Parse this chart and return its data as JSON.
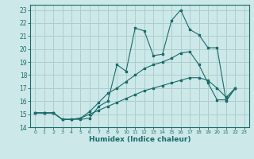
{
  "xlabel": "Humidex (Indice chaleur)",
  "bg_color": "#cce8e8",
  "grid_color": "#aecece",
  "line_color": "#1a6b6b",
  "xlim": [
    -0.5,
    23.5
  ],
  "ylim": [
    14,
    23.4
  ],
  "yticks": [
    14,
    15,
    16,
    17,
    18,
    19,
    20,
    21,
    22,
    23
  ],
  "xticks": [
    0,
    1,
    2,
    3,
    4,
    5,
    6,
    7,
    8,
    9,
    10,
    11,
    12,
    13,
    14,
    15,
    16,
    17,
    18,
    19,
    20,
    21,
    22,
    23
  ],
  "series": [
    {
      "x": [
        0,
        1,
        2,
        3,
        4,
        5,
        6,
        7,
        8,
        9,
        10,
        11,
        12,
        13,
        14,
        15,
        16,
        17,
        18,
        19,
        20,
        21,
        22
      ],
      "y": [
        15.1,
        15.1,
        15.1,
        14.6,
        14.6,
        14.6,
        14.7,
        15.6,
        16.0,
        18.8,
        18.3,
        21.6,
        21.4,
        19.5,
        19.6,
        22.2,
        23.0,
        21.5,
        21.1,
        20.1,
        20.1,
        16.0,
        17.0
      ]
    },
    {
      "x": [
        0,
        1,
        2,
        3,
        4,
        5,
        6,
        7,
        8,
        9,
        10,
        11,
        12,
        13,
        14,
        15,
        16,
        17,
        18,
        19,
        20,
        21,
        22
      ],
      "y": [
        15.1,
        15.1,
        15.1,
        14.6,
        14.6,
        14.7,
        15.2,
        15.9,
        16.6,
        17.0,
        17.5,
        18.0,
        18.5,
        18.8,
        19.0,
        19.3,
        19.7,
        19.8,
        18.8,
        17.4,
        16.1,
        16.1,
        17.0
      ]
    },
    {
      "x": [
        0,
        1,
        2,
        3,
        4,
        5,
        6,
        7,
        8,
        9,
        10,
        11,
        12,
        13,
        14,
        15,
        16,
        17,
        18,
        19,
        20,
        21,
        22
      ],
      "y": [
        15.1,
        15.1,
        15.1,
        14.6,
        14.6,
        14.7,
        15.0,
        15.3,
        15.6,
        15.9,
        16.2,
        16.5,
        16.8,
        17.0,
        17.2,
        17.4,
        17.6,
        17.8,
        17.8,
        17.6,
        17.0,
        16.3,
        17.0
      ]
    }
  ]
}
